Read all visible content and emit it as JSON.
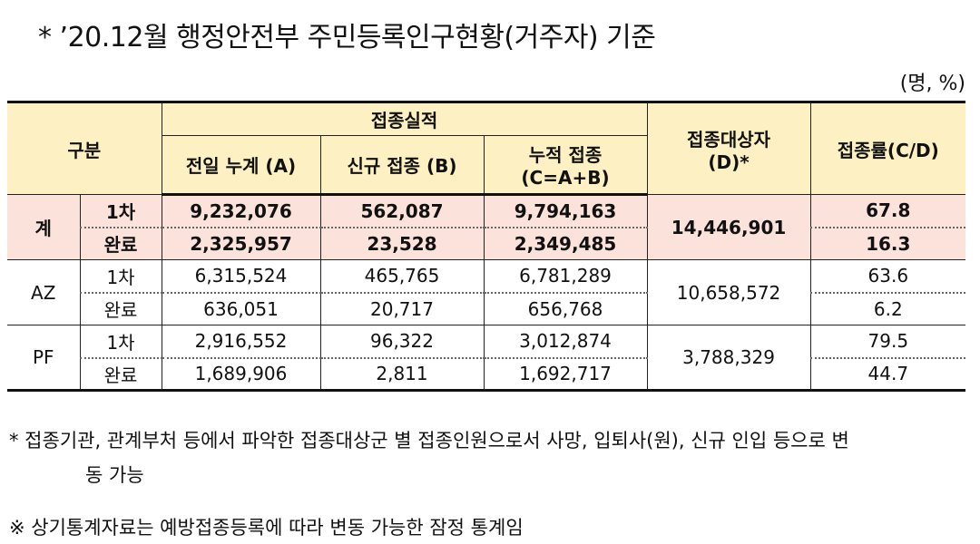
{
  "title": "* ’20.12월 행정안전부 주민등록인구현황(거주자) 기준",
  "unit": "(명, %)",
  "header": {
    "category": "구분",
    "performance": "접종실적",
    "prev_cumulative": "전일 누계 (A)",
    "new_vacc": "신규 접종 (B)",
    "cumulative_line1": "누적 접종",
    "cumulative_line2": "(C=A+B)",
    "target_line1": "접종대상자",
    "target_line2": "(D)*",
    "rate": "접종률(C/D)"
  },
  "groups": [
    {
      "name": "계",
      "target": "14,446,901",
      "rows": [
        {
          "dose": "1차",
          "prev": "9,232,076",
          "new": "562,087",
          "cum": "9,794,163",
          "rate": "67.8"
        },
        {
          "dose": "완료",
          "prev": "2,325,957",
          "new": "23,528",
          "cum": "2,349,485",
          "rate": "16.3"
        }
      ]
    },
    {
      "name": "AZ",
      "target": "10,658,572",
      "rows": [
        {
          "dose": "1차",
          "prev": "6,315,524",
          "new": "465,765",
          "cum": "6,781,289",
          "rate": "63.6"
        },
        {
          "dose": "완료",
          "prev": "636,051",
          "new": "20,717",
          "cum": "656,768",
          "rate": "6.2"
        }
      ]
    },
    {
      "name": "PF",
      "target": "3,788,329",
      "rows": [
        {
          "dose": "1차",
          "prev": "2,916,552",
          "new": "96,322",
          "cum": "3,012,874",
          "rate": "79.5"
        },
        {
          "dose": "완료",
          "prev": "1,689,906",
          "new": "2,811",
          "cum": "1,692,717",
          "rate": "44.7"
        }
      ]
    }
  ],
  "notes": {
    "note1_line1": "* 접종기관, 관계부처 등에서 파악한 접종대상군 별 접종인원으로서 사망, 입퇴사(원), 신규 인입 등으로 변",
    "note1_line2": "동 가능",
    "note2": "※ 상기통계자료는 예방접종등록에 따라 변동 가능한 잠정 통계임"
  }
}
